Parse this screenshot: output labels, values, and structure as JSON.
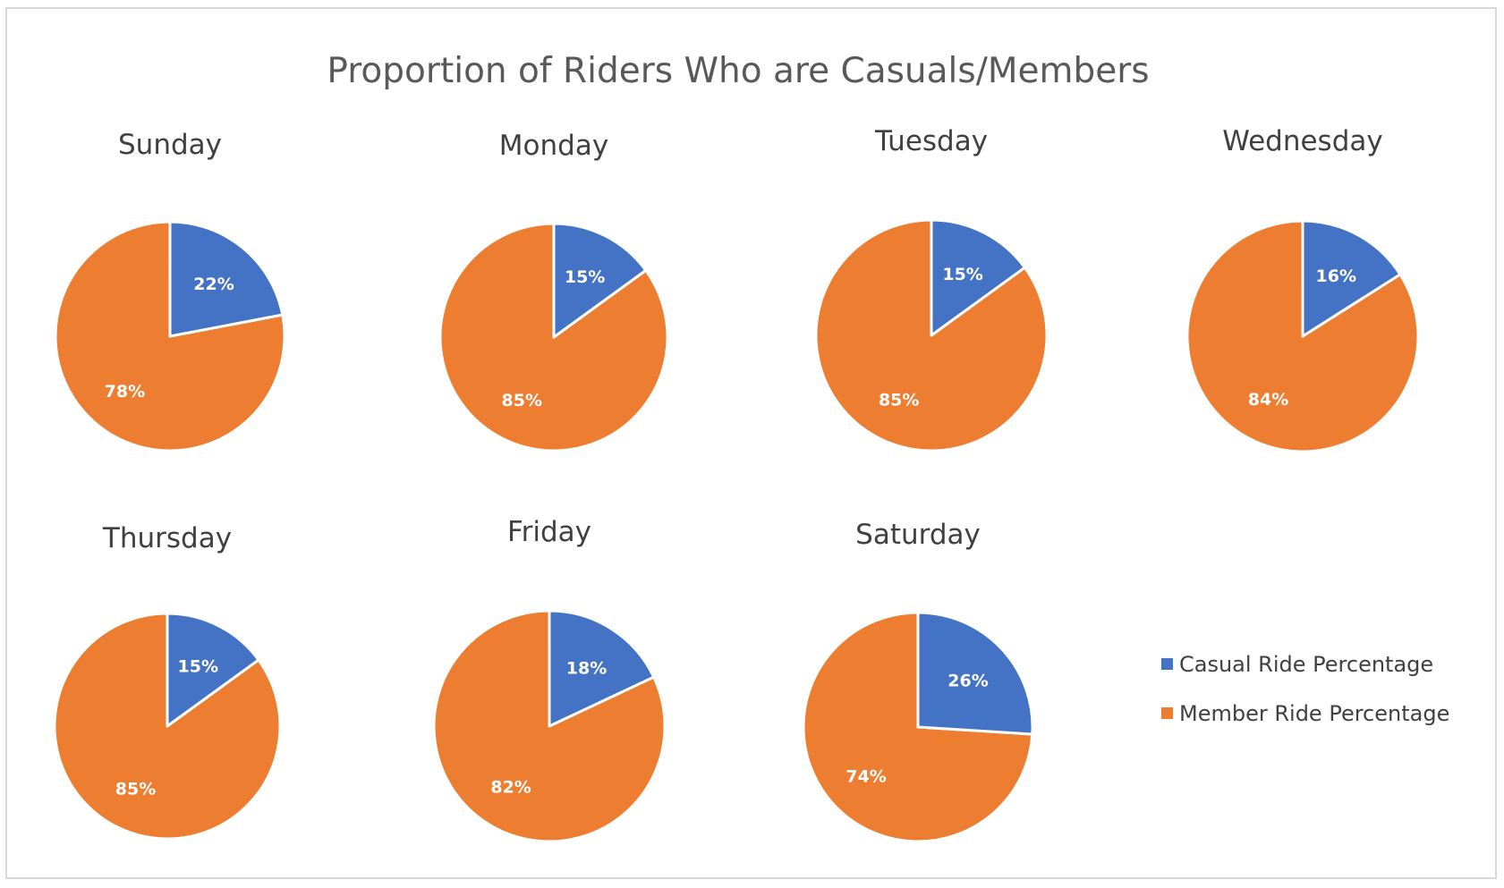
{
  "chart_data": {
    "type": "pie",
    "title": "Proportion of Riders Who are Casuals/Members",
    "series_names": [
      "Casual Ride Percentage",
      "Member Ride Percentage"
    ],
    "colors": {
      "casual": "#4472C4",
      "member": "#ED7D31",
      "slice_border": "#ffffff"
    },
    "legend_position": "right",
    "pies": [
      {
        "day": "Sunday",
        "casual": 22,
        "member": 78,
        "casual_label": "22%",
        "member_label": "78%"
      },
      {
        "day": "Monday",
        "casual": 15,
        "member": 85,
        "casual_label": "15%",
        "member_label": "85%"
      },
      {
        "day": "Tuesday",
        "casual": 15,
        "member": 85,
        "casual_label": "15%",
        "member_label": "85%"
      },
      {
        "day": "Wednesday",
        "casual": 16,
        "member": 84,
        "casual_label": "16%",
        "member_label": "84%"
      },
      {
        "day": "Thursday",
        "casual": 15,
        "member": 85,
        "casual_label": "15%",
        "member_label": "85%"
      },
      {
        "day": "Friday",
        "casual": 18,
        "member": 82,
        "casual_label": "18%",
        "member_label": "82%"
      },
      {
        "day": "Saturday",
        "casual": 26,
        "member": 74,
        "casual_label": "26%",
        "member_label": "74%"
      }
    ]
  }
}
